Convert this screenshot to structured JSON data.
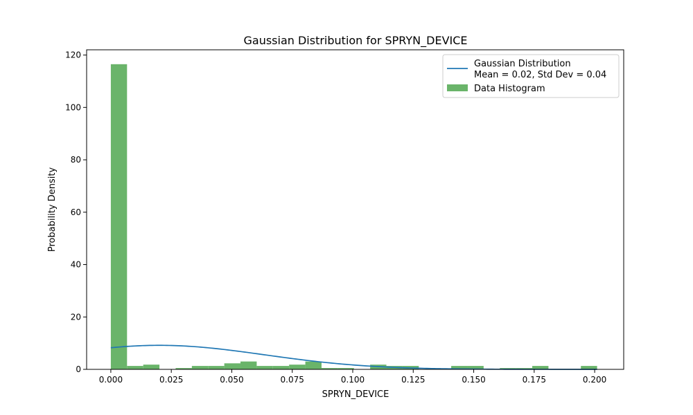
{
  "chart_data": {
    "type": "bar",
    "title": "Gaussian Distribution for SPRYN_DEVICE",
    "xlabel": "SPRYN_DEVICE",
    "ylabel": "Probability Density",
    "xlim": [
      -0.01,
      0.212
    ],
    "ylim": [
      0,
      122
    ],
    "xticks": [
      0.0,
      0.025,
      0.05,
      0.075,
      0.1,
      0.125,
      0.15,
      0.175,
      0.2
    ],
    "xtick_labels": [
      "0.000",
      "0.025",
      "0.050",
      "0.075",
      "0.100",
      "0.125",
      "0.150",
      "0.175",
      "0.200"
    ],
    "yticks": [
      0,
      20,
      40,
      60,
      80,
      100,
      120
    ],
    "ytick_labels": [
      "0",
      "20",
      "40",
      "60",
      "80",
      "100",
      "120"
    ],
    "grid": false,
    "legend_position": "top-right",
    "series": [
      {
        "name": "Data Histogram",
        "kind": "histogram",
        "color": "#6ab46a",
        "bin_start": 0.0,
        "bin_width": 0.0067,
        "values": [
          116.5,
          1.3,
          1.8,
          0,
          0.5,
          1.3,
          1.3,
          2.3,
          3.0,
          1.3,
          1.3,
          1.8,
          3.0,
          0.5,
          0.5,
          0,
          1.8,
          1.3,
          1.3,
          0,
          0,
          1.3,
          1.3,
          0,
          0.5,
          0.5,
          1.3,
          0,
          0,
          1.3
        ]
      },
      {
        "name": "Gaussian Distribution\nMean = 0.02, Std Dev = 0.04",
        "kind": "line",
        "color": "#1f77b4",
        "mean": 0.02,
        "std": 0.0435,
        "x_range": [
          0.0,
          0.201
        ]
      }
    ]
  },
  "legend": {
    "line_label_1": "Gaussian Distribution",
    "line_label_2": "Mean = 0.02, Std Dev = 0.04",
    "hist_label": "Data Histogram"
  }
}
